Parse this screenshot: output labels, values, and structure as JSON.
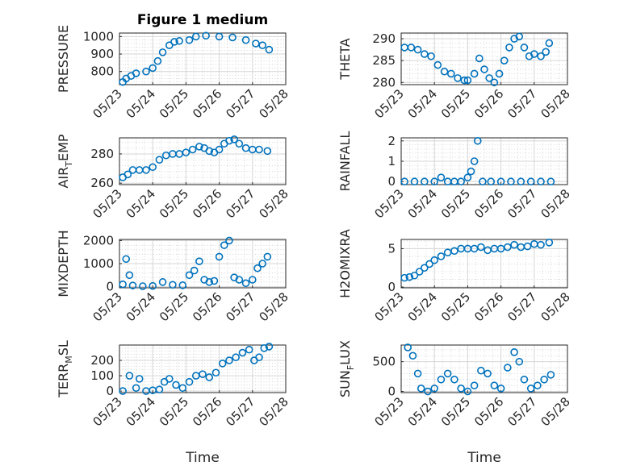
{
  "figure": {
    "title": "Figure 1 medium",
    "marker_color": "#0072BD"
  },
  "chart_data": [
    {
      "type": "scatter",
      "ylabel": "PRESSURE",
      "ylim": [
        725,
        1020
      ],
      "yticks": [
        800,
        900,
        1000
      ],
      "xlim": [
        "05/23",
        "05/28"
      ],
      "xticks": [
        "05/23",
        "05/24",
        "05/25",
        "05/26",
        "05/27",
        "05/28"
      ],
      "xlabel": "",
      "grid": true,
      "points": [
        [
          0.1,
          740
        ],
        [
          0.2,
          760
        ],
        [
          0.35,
          775
        ],
        [
          0.5,
          790
        ],
        [
          0.8,
          800
        ],
        [
          1.0,
          820
        ],
        [
          1.15,
          860
        ],
        [
          1.3,
          910
        ],
        [
          1.5,
          950
        ],
        [
          1.65,
          970
        ],
        [
          1.8,
          975
        ],
        [
          2.1,
          980
        ],
        [
          2.3,
          1000
        ],
        [
          2.6,
          1005
        ],
        [
          3.0,
          1000
        ],
        [
          3.4,
          995
        ],
        [
          3.8,
          980
        ],
        [
          4.1,
          960
        ],
        [
          4.3,
          950
        ],
        [
          4.5,
          925
        ]
      ]
    },
    {
      "type": "scatter",
      "ylabel": "THETA",
      "ylim": [
        279.5,
        291.3
      ],
      "yticks": [
        280,
        285,
        290
      ],
      "xlim": [
        "05/23",
        "05/28"
      ],
      "xticks": [
        "05/23",
        "05/24",
        "05/25",
        "05/26",
        "05/27",
        "05/28"
      ],
      "xlabel": "",
      "grid": true,
      "points": [
        [
          0.1,
          288
        ],
        [
          0.3,
          288
        ],
        [
          0.5,
          287.5
        ],
        [
          0.7,
          286.5
        ],
        [
          0.9,
          286
        ],
        [
          1.1,
          284
        ],
        [
          1.3,
          282.5
        ],
        [
          1.5,
          282
        ],
        [
          1.7,
          281
        ],
        [
          1.9,
          280.5
        ],
        [
          2.0,
          280.5
        ],
        [
          2.2,
          282
        ],
        [
          2.35,
          285.5
        ],
        [
          2.5,
          283
        ],
        [
          2.65,
          281
        ],
        [
          2.8,
          280
        ],
        [
          2.95,
          282
        ],
        [
          3.1,
          285
        ],
        [
          3.25,
          288
        ],
        [
          3.4,
          290
        ],
        [
          3.55,
          290.5
        ],
        [
          3.7,
          288
        ],
        [
          3.85,
          286
        ],
        [
          4.0,
          286.5
        ],
        [
          4.2,
          286
        ],
        [
          4.35,
          287
        ],
        [
          4.45,
          289
        ]
      ]
    },
    {
      "type": "scatter",
      "ylabel": "AIR_TEMP",
      "ylim": [
        259,
        291
      ],
      "yticks": [
        260,
        280
      ],
      "xlim": [
        "05/23",
        "05/28"
      ],
      "xticks": [
        "05/23",
        "05/24",
        "05/25",
        "05/26",
        "05/27",
        "05/28"
      ],
      "xlabel": "",
      "grid": true,
      "points": [
        [
          0.1,
          264
        ],
        [
          0.25,
          266
        ],
        [
          0.4,
          269
        ],
        [
          0.6,
          269
        ],
        [
          0.8,
          269
        ],
        [
          1.0,
          271
        ],
        [
          1.2,
          276
        ],
        [
          1.4,
          279
        ],
        [
          1.6,
          280
        ],
        [
          1.8,
          280
        ],
        [
          2.0,
          281
        ],
        [
          2.2,
          283
        ],
        [
          2.4,
          285
        ],
        [
          2.55,
          284
        ],
        [
          2.7,
          282
        ],
        [
          2.85,
          281
        ],
        [
          3.0,
          283
        ],
        [
          3.15,
          287
        ],
        [
          3.3,
          289
        ],
        [
          3.45,
          290
        ],
        [
          3.6,
          287
        ],
        [
          3.8,
          284
        ],
        [
          4.0,
          283
        ],
        [
          4.2,
          283
        ],
        [
          4.45,
          282
        ]
      ]
    },
    {
      "type": "scatter",
      "ylabel": "RAINFALL",
      "ylim": [
        -0.15,
        2.15
      ],
      "yticks": [
        0,
        1,
        2
      ],
      "xlim": [
        "05/23",
        "05/28"
      ],
      "xticks": [
        "05/23",
        "05/24",
        "05/25",
        "05/26",
        "05/27",
        "05/28"
      ],
      "xlabel": "",
      "grid": true,
      "points": [
        [
          0.1,
          0
        ],
        [
          0.4,
          0
        ],
        [
          0.7,
          0
        ],
        [
          1.0,
          0
        ],
        [
          1.2,
          0.2
        ],
        [
          1.4,
          0
        ],
        [
          1.6,
          0
        ],
        [
          1.8,
          0
        ],
        [
          2.0,
          0.2
        ],
        [
          2.1,
          0.5
        ],
        [
          2.2,
          1
        ],
        [
          2.3,
          2
        ],
        [
          2.45,
          0
        ],
        [
          2.7,
          0
        ],
        [
          3.0,
          0
        ],
        [
          3.3,
          0
        ],
        [
          3.6,
          0
        ],
        [
          3.9,
          0
        ],
        [
          4.2,
          0
        ],
        [
          4.5,
          0
        ]
      ]
    },
    {
      "type": "scatter",
      "ylabel": "MIXDEPTH",
      "ylim": [
        -50,
        2050
      ],
      "yticks": [
        0,
        1000,
        2000
      ],
      "xlim": [
        "05/23",
        "05/28"
      ],
      "xticks": [
        "05/23",
        "05/24",
        "05/25",
        "05/26",
        "05/27",
        "05/28"
      ],
      "xlabel": "",
      "grid": true,
      "points": [
        [
          0.1,
          100
        ],
        [
          0.2,
          1200
        ],
        [
          0.3,
          500
        ],
        [
          0.4,
          50
        ],
        [
          0.7,
          20
        ],
        [
          1.0,
          30
        ],
        [
          1.3,
          200
        ],
        [
          1.6,
          80
        ],
        [
          1.9,
          60
        ],
        [
          2.1,
          500
        ],
        [
          2.25,
          700
        ],
        [
          2.4,
          1100
        ],
        [
          2.55,
          300
        ],
        [
          2.7,
          200
        ],
        [
          2.85,
          250
        ],
        [
          3.0,
          1300
        ],
        [
          3.15,
          1800
        ],
        [
          3.3,
          2000
        ],
        [
          3.45,
          400
        ],
        [
          3.6,
          300
        ],
        [
          3.8,
          150
        ],
        [
          4.0,
          300
        ],
        [
          4.15,
          800
        ],
        [
          4.3,
          1000
        ],
        [
          4.45,
          1300
        ]
      ]
    },
    {
      "type": "scatter",
      "ylabel": "H2OMIXRA",
      "ylim": [
        -0.1,
        6.2
      ],
      "yticks": [
        0,
        5
      ],
      "xlim": [
        "05/23",
        "05/28"
      ],
      "xticks": [
        "05/23",
        "05/24",
        "05/25",
        "05/26",
        "05/27",
        "05/28"
      ],
      "xlabel": "",
      "grid": true,
      "points": [
        [
          0.1,
          1.2
        ],
        [
          0.25,
          1.3
        ],
        [
          0.4,
          1.5
        ],
        [
          0.55,
          2
        ],
        [
          0.7,
          2.5
        ],
        [
          0.85,
          3
        ],
        [
          1.0,
          3.5
        ],
        [
          1.2,
          4
        ],
        [
          1.4,
          4.5
        ],
        [
          1.6,
          4.7
        ],
        [
          1.8,
          5
        ],
        [
          2.0,
          5
        ],
        [
          2.2,
          5
        ],
        [
          2.4,
          5.2
        ],
        [
          2.6,
          4.8
        ],
        [
          2.8,
          5
        ],
        [
          3.0,
          5
        ],
        [
          3.2,
          5.2
        ],
        [
          3.4,
          5.5
        ],
        [
          3.6,
          5.2
        ],
        [
          3.8,
          5.3
        ],
        [
          4.0,
          5.6
        ],
        [
          4.2,
          5.5
        ],
        [
          4.45,
          5.8
        ]
      ]
    },
    {
      "type": "scatter",
      "ylabel": "TERR_MSL",
      "ylim": [
        -10,
        300
      ],
      "yticks": [
        0,
        100,
        200
      ],
      "xlim": [
        "05/23",
        "05/28"
      ],
      "xticks": [
        "05/23",
        "05/24",
        "05/25",
        "05/26",
        "05/27",
        "05/28"
      ],
      "xlabel": "Time",
      "grid": true,
      "points": [
        [
          0.1,
          0
        ],
        [
          0.3,
          100
        ],
        [
          0.5,
          20
        ],
        [
          0.6,
          80
        ],
        [
          0.8,
          0
        ],
        [
          1.0,
          5
        ],
        [
          1.2,
          10
        ],
        [
          1.35,
          60
        ],
        [
          1.5,
          80
        ],
        [
          1.7,
          40
        ],
        [
          1.9,
          20
        ],
        [
          2.1,
          60
        ],
        [
          2.3,
          100
        ],
        [
          2.5,
          110
        ],
        [
          2.7,
          90
        ],
        [
          2.9,
          120
        ],
        [
          3.1,
          180
        ],
        [
          3.3,
          200
        ],
        [
          3.5,
          220
        ],
        [
          3.7,
          250
        ],
        [
          3.9,
          270
        ],
        [
          4.05,
          200
        ],
        [
          4.2,
          220
        ],
        [
          4.35,
          280
        ],
        [
          4.5,
          290
        ]
      ]
    },
    {
      "type": "scatter",
      "ylabel": "SUN_FLUX",
      "ylim": [
        -20,
        780
      ],
      "yticks": [
        0,
        500
      ],
      "xlim": [
        "05/23",
        "05/28"
      ],
      "xticks": [
        "05/23",
        "05/24",
        "05/25",
        "05/26",
        "05/27",
        "05/28"
      ],
      "xlabel": "Time",
      "grid": true,
      "points": [
        [
          0.2,
          740
        ],
        [
          0.35,
          600
        ],
        [
          0.5,
          300
        ],
        [
          0.6,
          50
        ],
        [
          0.8,
          0
        ],
        [
          1.0,
          50
        ],
        [
          1.2,
          200
        ],
        [
          1.4,
          300
        ],
        [
          1.6,
          200
        ],
        [
          1.8,
          50
        ],
        [
          2.0,
          0
        ],
        [
          2.2,
          100
        ],
        [
          2.4,
          350
        ],
        [
          2.6,
          300
        ],
        [
          2.8,
          100
        ],
        [
          3.0,
          50
        ],
        [
          3.2,
          400
        ],
        [
          3.4,
          660
        ],
        [
          3.55,
          500
        ],
        [
          3.7,
          200
        ],
        [
          3.9,
          50
        ],
        [
          4.1,
          100
        ],
        [
          4.3,
          200
        ],
        [
          4.5,
          280
        ]
      ]
    }
  ]
}
